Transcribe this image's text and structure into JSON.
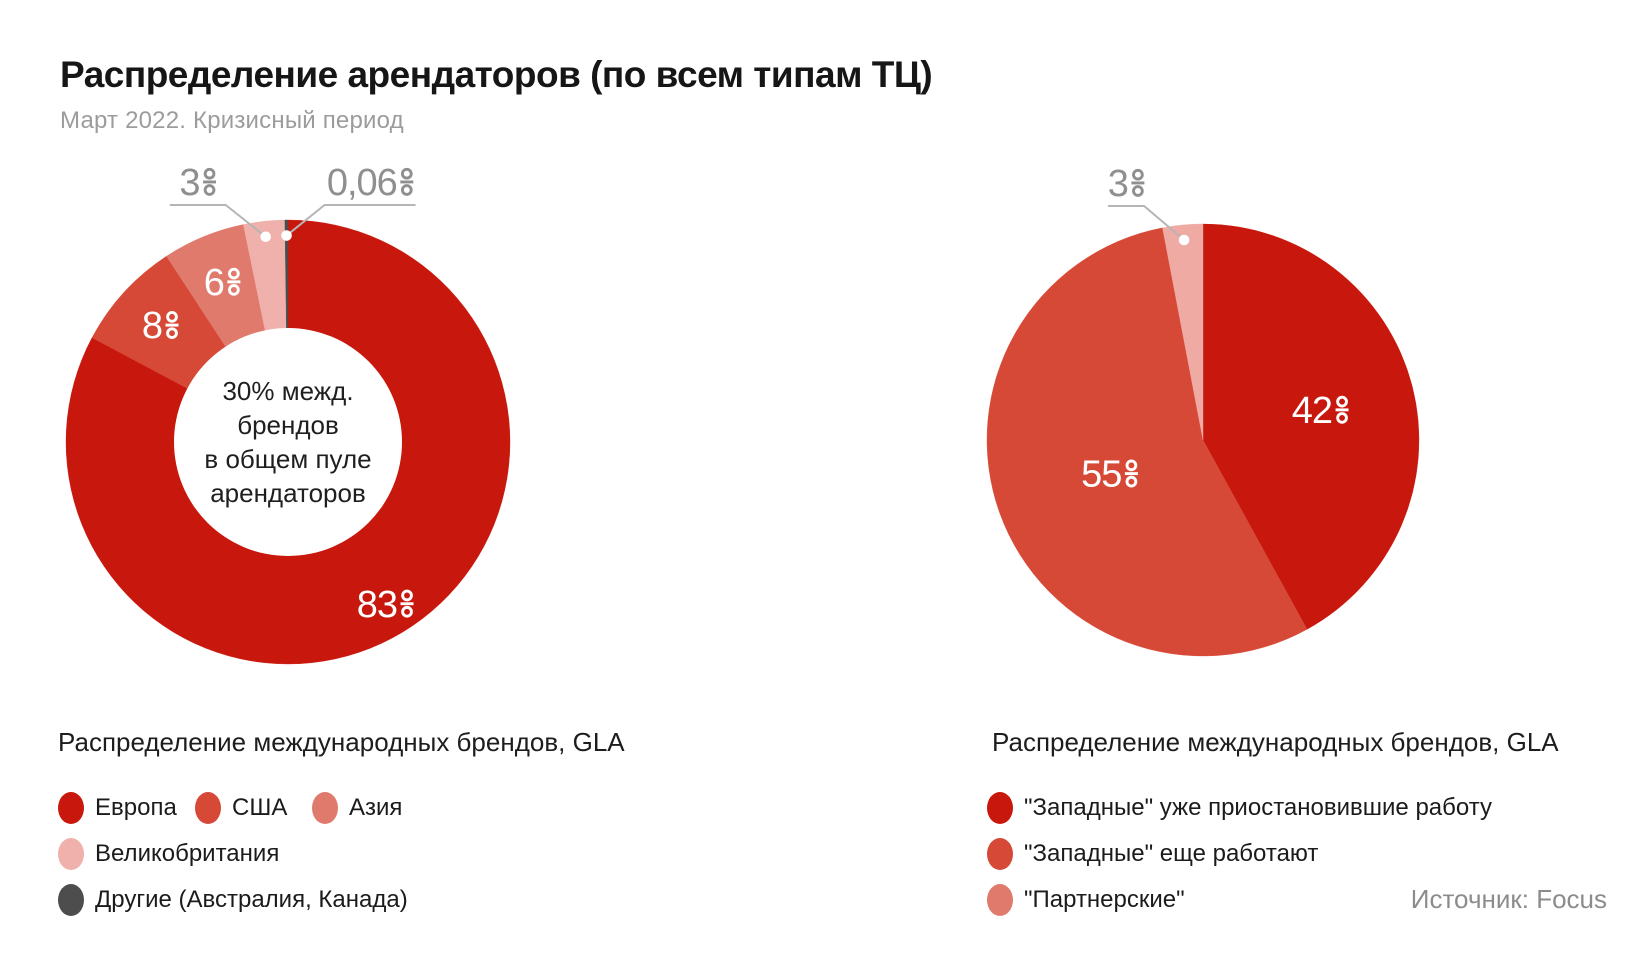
{
  "header": {
    "title": "Распределение арендаторов (по всем типам ТЦ)",
    "subtitle": "Март 2022. Кризисный период"
  },
  "source": "Источник: Focus",
  "colors": {
    "dark_red": "#c8180d",
    "medium_red": "#d74937",
    "salmon": "#e07a6c",
    "pale_pink": "#f0b0ab",
    "dark_gray": "#4d4d4d",
    "callout_text_gray": "#8f8f8f",
    "leader_line_gray": "#b5b5b5"
  },
  "chart_data": [
    {
      "type": "pie",
      "variant": "donut",
      "caption": "Распределение международных брендов, GLA",
      "start_angle": "top",
      "direction": "clockwise",
      "unit": "%",
      "center_label": [
        "30% межд.",
        "брендов",
        "в общем пуле",
        "арендаторов"
      ],
      "slices": [
        {
          "label": "Европа",
          "value": 83,
          "display": "83",
          "color": "#c8180d"
        },
        {
          "label": "США",
          "value": 8,
          "display": "8",
          "color": "#d74937"
        },
        {
          "label": "Азия",
          "value": 6,
          "display": "6",
          "color": "#e07a6c"
        },
        {
          "label": "Великобритания",
          "value": 3,
          "display": "3",
          "color": "#f0b0ab",
          "label_outside": true
        },
        {
          "label": "Другие (Австралия, Канада)",
          "value": 0.06,
          "display": "0,06",
          "color": "#4d4d4d",
          "label_outside": true
        }
      ],
      "legend_position": "bottom"
    },
    {
      "type": "pie",
      "variant": "pie",
      "caption": "Распределение международных брендов, GLA",
      "start_angle": "top",
      "direction": "clockwise",
      "unit": "%",
      "slices": [
        {
          "label": "\"Западные\" уже приостановившие работу",
          "value": 42,
          "display": "42",
          "color": "#c8180d"
        },
        {
          "label": "\"Западные\" еще работают",
          "value": 55,
          "display": "55",
          "color": "#d74937"
        },
        {
          "label": "\"Партнерские\"",
          "value": 3,
          "display": "3",
          "color": "#e07a6c",
          "slice_color": "#f0aaa4",
          "label_outside": true
        }
      ],
      "legend_position": "bottom"
    }
  ]
}
